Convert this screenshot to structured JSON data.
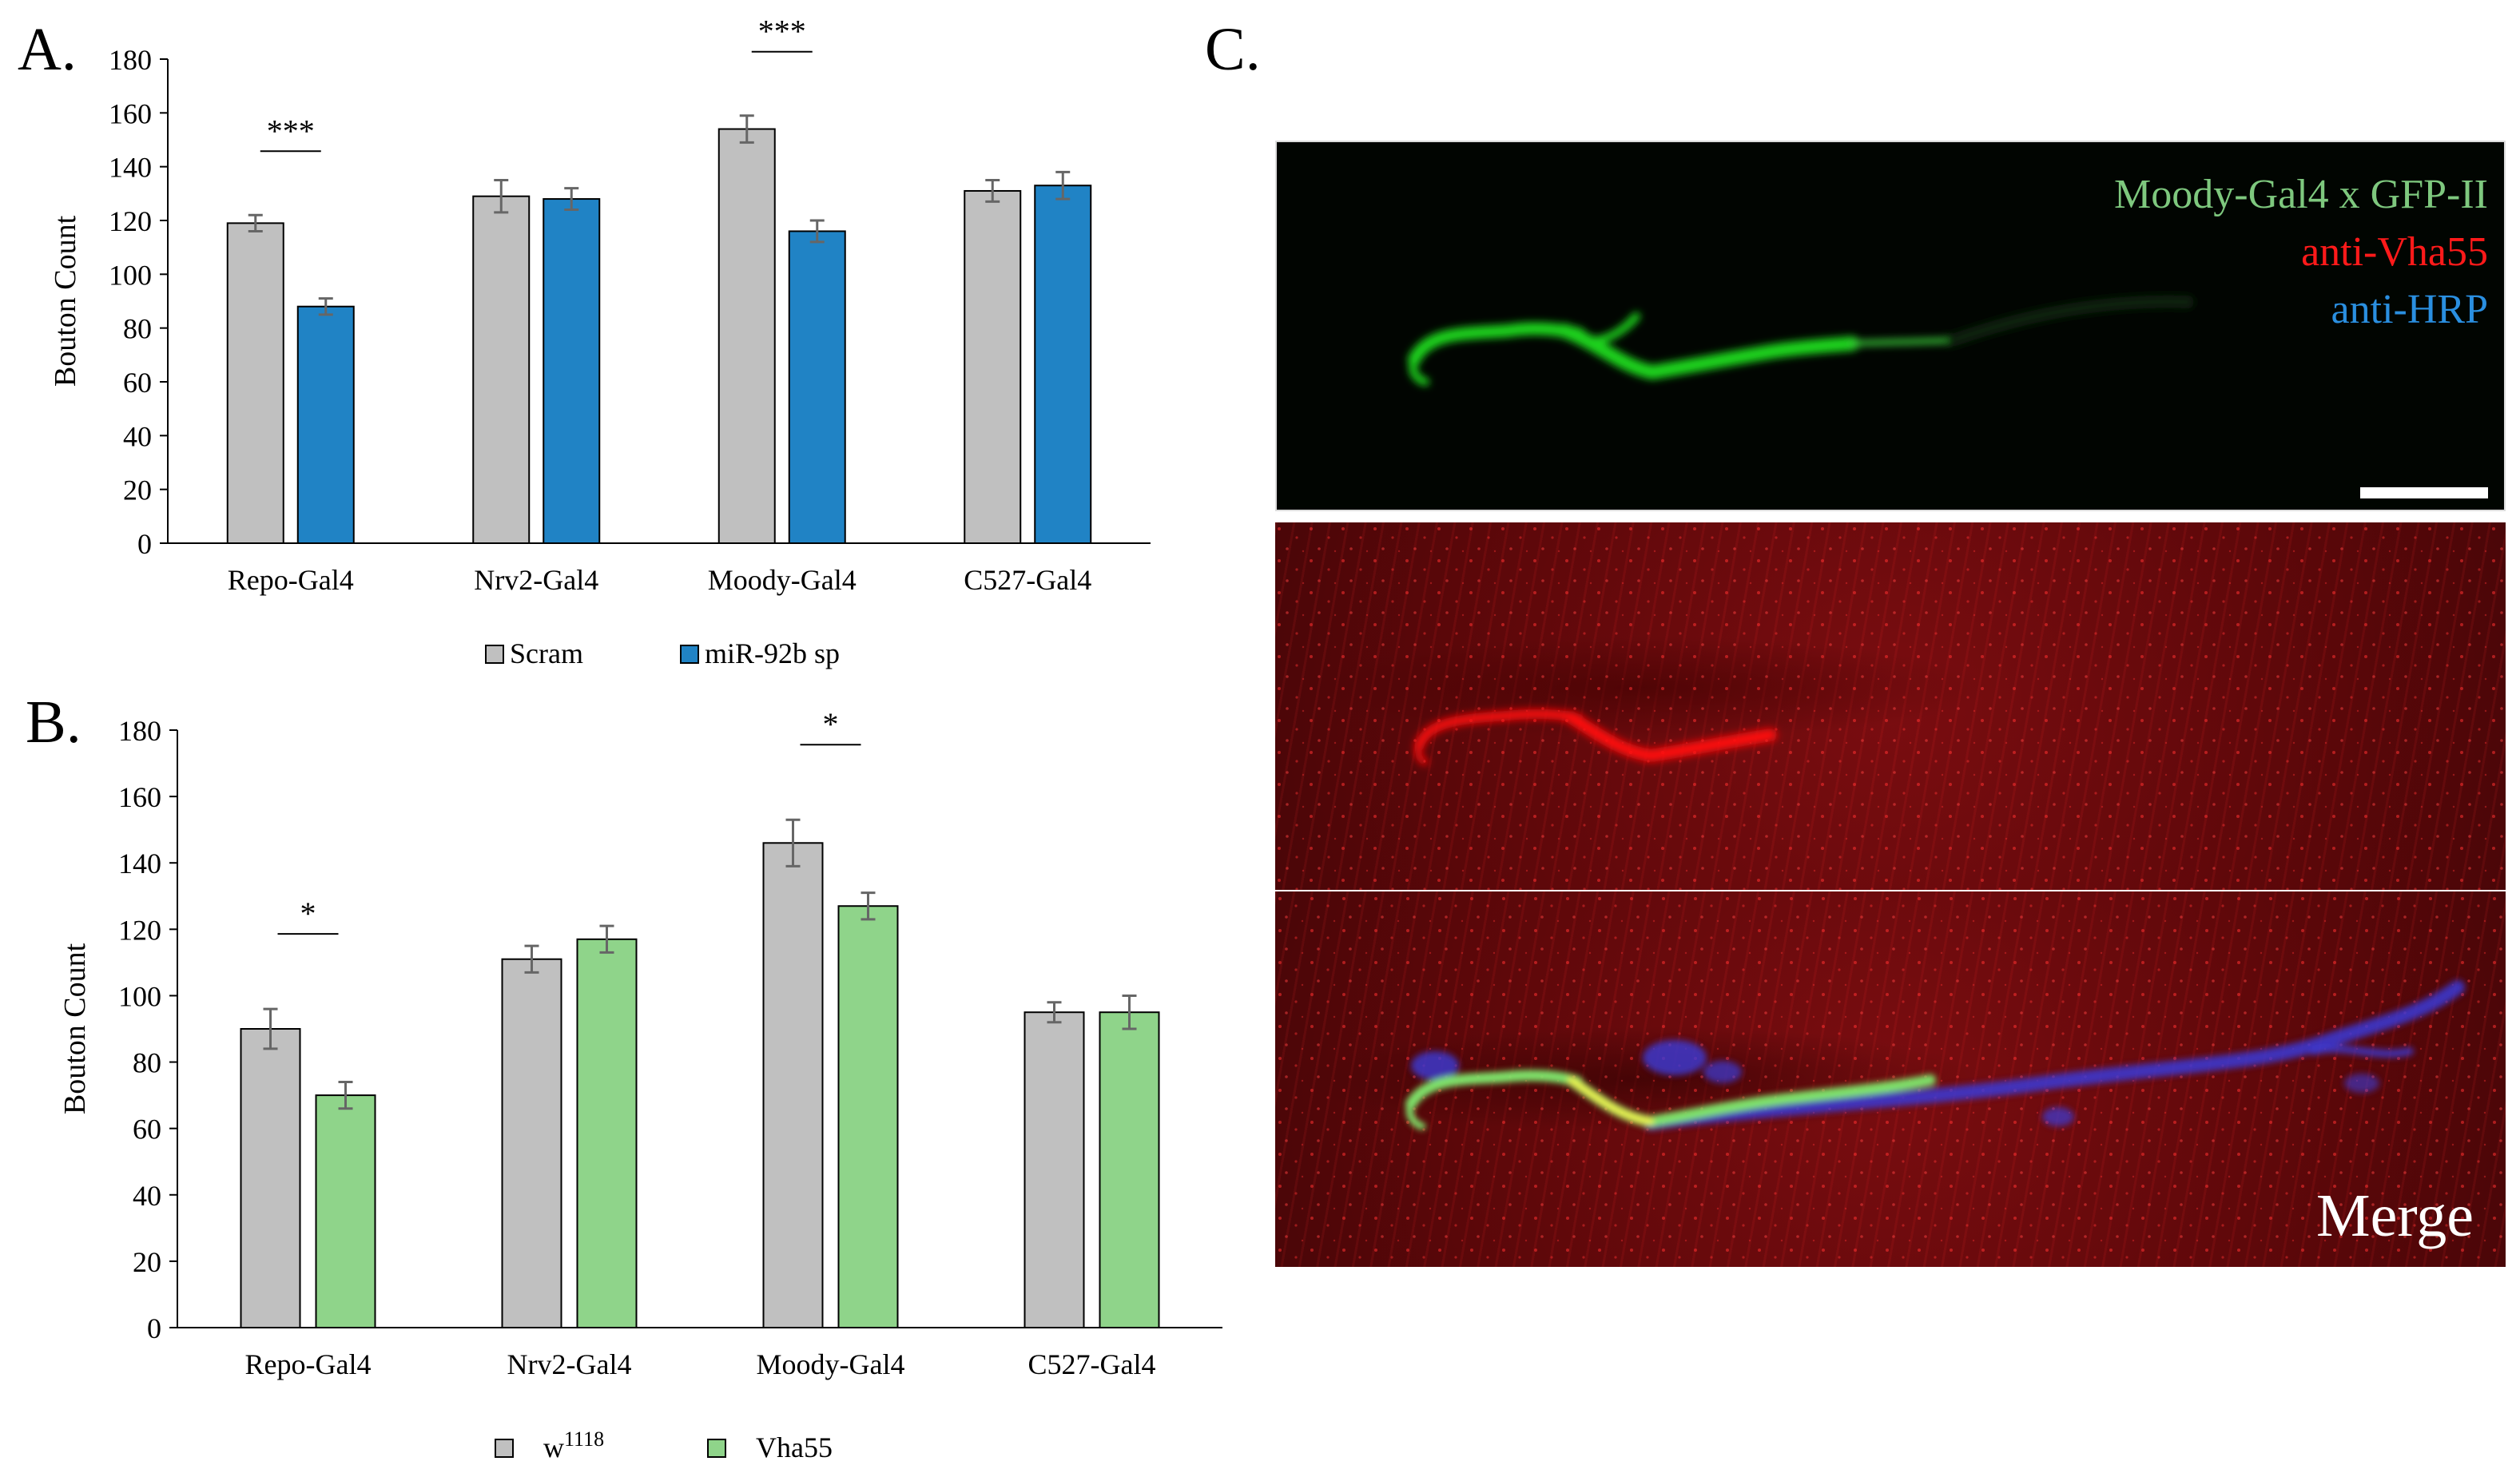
{
  "panels": {
    "a": "A.",
    "b": "B.",
    "c": "C."
  },
  "chart_data": [
    {
      "type": "bar",
      "ylabel": "Bouton Count",
      "ylim": [
        0,
        180
      ],
      "yticks": [
        0,
        20,
        40,
        60,
        80,
        100,
        120,
        140,
        160,
        180
      ],
      "categories": [
        "Repo-Gal4",
        "Nrv2-Gal4",
        "Moody-Gal4",
        "C527-Gal4"
      ],
      "series": [
        {
          "name": "Scram",
          "color": "#c0c0c0",
          "values": [
            119,
            129,
            154,
            131
          ],
          "errors": [
            3,
            6,
            5,
            4
          ]
        },
        {
          "name": "miR-92b sp",
          "color": "#2083c5",
          "values": [
            88,
            128,
            116,
            133
          ],
          "errors": [
            3,
            4,
            4,
            5
          ]
        }
      ],
      "significance": [
        {
          "category": "Repo-Gal4",
          "label": "***"
        },
        {
          "category": "Moody-Gal4",
          "label": "***"
        }
      ],
      "legend": "bottom",
      "grid": false
    },
    {
      "type": "bar",
      "ylabel": "Bouton Count",
      "ylim": [
        0,
        180
      ],
      "yticks": [
        0,
        20,
        40,
        60,
        80,
        100,
        120,
        140,
        160,
        180
      ],
      "categories": [
        "Repo-Gal4",
        "Nrv2-Gal4",
        "Moody-Gal4",
        "C527-Gal4"
      ],
      "series": [
        {
          "name": "w",
          "name_sup": "1118",
          "color": "#c0c0c0",
          "values": [
            90,
            111,
            146,
            95
          ],
          "errors": [
            6,
            4,
            7,
            3
          ]
        },
        {
          "name": "Vha55",
          "color": "#8fd48a",
          "values": [
            70,
            117,
            127,
            95
          ],
          "errors": [
            4,
            4,
            4,
            5
          ]
        }
      ],
      "significance": [
        {
          "category": "Repo-Gal4",
          "label": "*"
        },
        {
          "category": "Moody-Gal4",
          "label": "*"
        }
      ],
      "legend": "bottom",
      "grid": false
    }
  ],
  "micrograph": {
    "labels": {
      "green": "Moody-Gal4 x GFP-II",
      "red": "anti-Vha55",
      "blue": "anti-HRP",
      "merge": "Merge"
    },
    "colors": {
      "green": "#7ec87e",
      "red": "#ff1a1a",
      "blue": "#2a8fe0"
    }
  }
}
